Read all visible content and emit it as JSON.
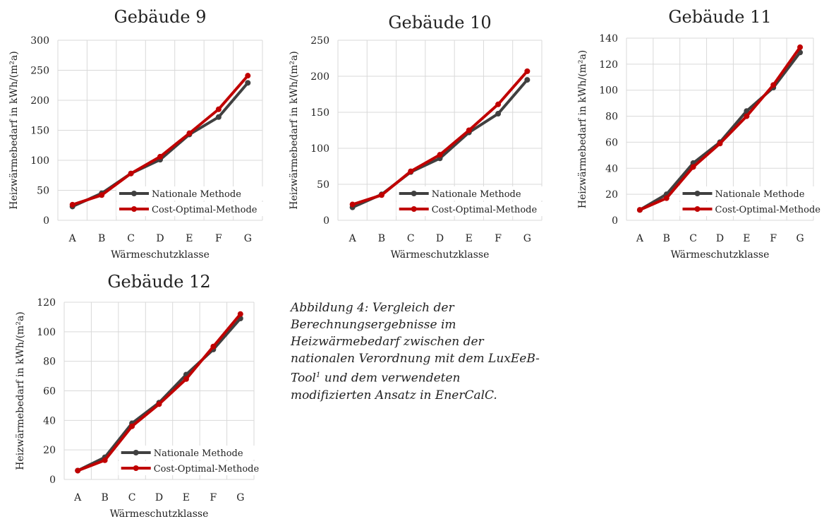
{
  "chart_data": [
    {
      "type": "line",
      "title": "Gebäude 9",
      "xlabel": "Wärmeschutzklasse",
      "ylabel": "Heizwärmebedarf in kWh/(m²a)",
      "categories": [
        "A",
        "B",
        "C",
        "D",
        "E",
        "F",
        "G"
      ],
      "ylim": [
        0,
        300
      ],
      "yticks": [
        "0",
        "50",
        "100",
        "150",
        "200",
        "250",
        "300"
      ],
      "grid": true,
      "legend_position": "bottom-right",
      "series": [
        {
          "name": "Nationale Methode",
          "color": "#404040",
          "values": [
            23,
            45,
            78,
            101,
            143,
            172,
            229
          ]
        },
        {
          "name": "Cost-Optimal-Methode",
          "color": "#c00000",
          "values": [
            26,
            42,
            78,
            106,
            145,
            185,
            241
          ]
        }
      ]
    },
    {
      "type": "line",
      "title": "Gebäude 10",
      "xlabel": "Wärmeschutzklasse",
      "ylabel": "Heizwärmebedarf in kWh/(m²a)",
      "categories": [
        "A",
        "B",
        "C",
        "D",
        "E",
        "F",
        "G"
      ],
      "ylim": [
        0,
        250
      ],
      "yticks": [
        "0",
        "50",
        "100",
        "150",
        "200",
        "250"
      ],
      "grid": true,
      "legend_position": "bottom-right",
      "series": [
        {
          "name": "Nationale Methode",
          "color": "#404040",
          "values": [
            18,
            36,
            67,
            86,
            122,
            148,
            195
          ]
        },
        {
          "name": "Cost-Optimal-Methode",
          "color": "#c00000",
          "values": [
            22,
            35,
            68,
            91,
            125,
            161,
            207
          ]
        }
      ]
    },
    {
      "type": "line",
      "title": "Gebäude 11",
      "xlabel": "Wärmeschutzklasse",
      "ylabel": "Heizwärmebedarf in kWh/(m²a)",
      "categories": [
        "A",
        "B",
        "C",
        "D",
        "E",
        "F",
        "G"
      ],
      "ylim": [
        0,
        140
      ],
      "yticks": [
        "0",
        "20",
        "40",
        "60",
        "80",
        "100",
        "120",
        "140"
      ],
      "grid": true,
      "legend_position": "bottom-right",
      "series": [
        {
          "name": "Nationale Methode",
          "color": "#404040",
          "values": [
            8,
            20,
            44,
            60,
            84,
            102,
            129
          ]
        },
        {
          "name": "Cost-Optimal-Methode",
          "color": "#c00000",
          "values": [
            8,
            17,
            41,
            59,
            80,
            104,
            133
          ]
        }
      ]
    },
    {
      "type": "line",
      "title": "Gebäude 12",
      "xlabel": "Wärmeschutzklasse",
      "ylabel": "Heizwärmebedarf in kWh/(m²a)",
      "categories": [
        "A",
        "B",
        "C",
        "D",
        "E",
        "F",
        "G"
      ],
      "ylim": [
        0,
        120
      ],
      "yticks": [
        "0",
        "20",
        "40",
        "60",
        "80",
        "100",
        "120"
      ],
      "grid": true,
      "legend_position": "bottom-right",
      "series": [
        {
          "name": "Nationale Methode",
          "color": "#404040",
          "values": [
            6,
            15,
            38,
            52,
            71,
            88,
            109
          ]
        },
        {
          "name": "Cost-Optimal-Methode",
          "color": "#c00000",
          "values": [
            6,
            13,
            36,
            51,
            68,
            90,
            112
          ]
        }
      ]
    }
  ],
  "caption": {
    "text_before": "Abbildung 4: Vergleich der Berechnungsergebnisse im Heizwärmebedarf zwischen der nationalen Verordnung mit dem LuxEeB-Tool",
    "footnote_mark": "1",
    "text_after": " und dem verwendeten modifizierten Ansatz in EnerCalC."
  }
}
